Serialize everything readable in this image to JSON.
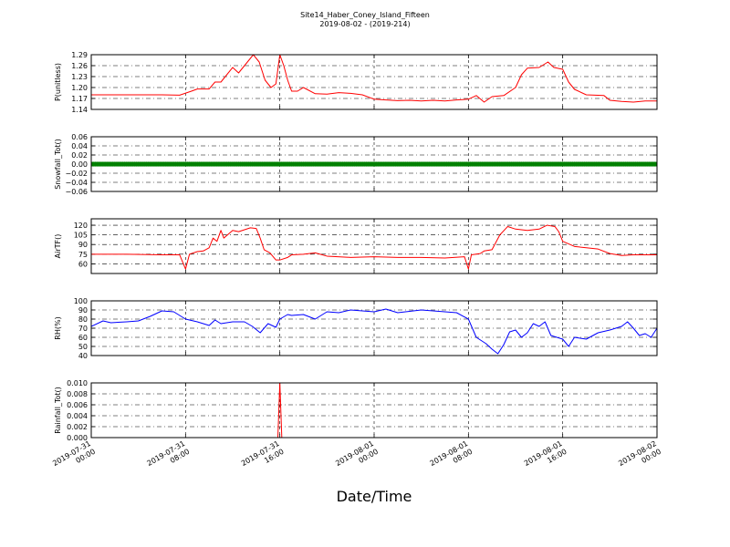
{
  "figure": {
    "title_line1": "Site14_Haber_Coney_Island_Fifteen",
    "title_line2": "2019-08-02 - (2019-214)",
    "xlabel": "Date/Time"
  },
  "x_axis": {
    "tick_times": [
      "2019-07-31T00:00",
      "2019-07-31T08:00",
      "2019-07-31T16:00",
      "2019-08-01T00:00",
      "2019-08-01T08:00",
      "2019-08-01T16:00",
      "2019-08-02T00:00"
    ],
    "tick_labels": [
      [
        "2019-07-31",
        "00:00"
      ],
      [
        "2019-07-31",
        "08:00"
      ],
      [
        "2019-07-31",
        "16:00"
      ],
      [
        "2019-08-01",
        "00:00"
      ],
      [
        "2019-08-01",
        "08:00"
      ],
      [
        "2019-08-01",
        "16:00"
      ],
      [
        "2019-08-02",
        "00:00"
      ]
    ]
  },
  "colors": {
    "pressure": "#ff0000",
    "snowfall": "#008000",
    "airtemp": "#ff0000",
    "rh": "#0000ff",
    "rainfall": "#ff0000"
  },
  "chart_data": [
    {
      "type": "line",
      "ylabel": "P(unitless)",
      "ylim": [
        1.14,
        1.29
      ],
      "yticks": [
        1.14,
        1.17,
        1.2,
        1.23,
        1.26,
        1.29
      ],
      "ytick_labels": [
        "1.14",
        "1.17",
        "1.20",
        "1.23",
        "1.26",
        "1.29"
      ],
      "grid": true,
      "series": [
        {
          "points": [
            [
              "2019-07-31T00:00",
              1.18
            ],
            [
              "2019-07-31T02:00",
              1.18
            ],
            [
              "2019-07-31T04:00",
              1.18
            ],
            [
              "2019-07-31T06:00",
              1.18
            ],
            [
              "2019-07-31T07:30",
              1.179
            ],
            [
              "2019-07-31T08:30",
              1.19
            ],
            [
              "2019-07-31T09:00",
              1.196
            ],
            [
              "2019-07-31T10:00",
              1.196
            ],
            [
              "2019-07-31T10:30",
              1.215
            ],
            [
              "2019-07-31T11:00",
              1.215
            ],
            [
              "2019-07-31T12:00",
              1.255
            ],
            [
              "2019-07-31T12:30",
              1.24
            ],
            [
              "2019-07-31T13:00",
              1.26
            ],
            [
              "2019-07-31T13:45",
              1.29
            ],
            [
              "2019-07-31T14:15",
              1.27
            ],
            [
              "2019-07-31T14:45",
              1.22
            ],
            [
              "2019-07-31T15:15",
              1.2
            ],
            [
              "2019-07-31T15:40",
              1.21
            ],
            [
              "2019-07-31T16:00",
              1.29
            ],
            [
              "2019-07-31T16:20",
              1.26
            ],
            [
              "2019-07-31T16:40",
              1.22
            ],
            [
              "2019-07-31T17:00",
              1.19
            ],
            [
              "2019-07-31T17:30",
              1.19
            ],
            [
              "2019-07-31T18:00",
              1.2
            ],
            [
              "2019-07-31T19:00",
              1.183
            ],
            [
              "2019-07-31T20:00",
              1.182
            ],
            [
              "2019-07-31T21:00",
              1.186
            ],
            [
              "2019-07-31T22:00",
              1.184
            ],
            [
              "2019-07-31T23:00",
              1.18
            ],
            [
              "2019-08-01T00:00",
              1.168
            ],
            [
              "2019-08-01T01:00",
              1.166
            ],
            [
              "2019-08-01T02:00",
              1.164
            ],
            [
              "2019-08-01T03:00",
              1.165
            ],
            [
              "2019-08-01T04:00",
              1.163
            ],
            [
              "2019-08-01T05:00",
              1.165
            ],
            [
              "2019-08-01T06:00",
              1.163
            ],
            [
              "2019-08-01T07:00",
              1.166
            ],
            [
              "2019-08-01T08:00",
              1.168
            ],
            [
              "2019-08-01T08:40",
              1.178
            ],
            [
              "2019-08-01T09:20",
              1.16
            ],
            [
              "2019-08-01T10:00",
              1.175
            ],
            [
              "2019-08-01T11:00",
              1.178
            ],
            [
              "2019-08-01T12:00",
              1.2
            ],
            [
              "2019-08-01T12:30",
              1.235
            ],
            [
              "2019-08-01T13:00",
              1.253
            ],
            [
              "2019-08-01T14:00",
              1.255
            ],
            [
              "2019-08-01T14:45",
              1.27
            ],
            [
              "2019-08-01T15:15",
              1.255
            ],
            [
              "2019-08-01T16:00",
              1.25
            ],
            [
              "2019-08-01T16:30",
              1.215
            ],
            [
              "2019-08-01T17:00",
              1.195
            ],
            [
              "2019-08-01T18:00",
              1.18
            ],
            [
              "2019-08-01T19:30",
              1.178
            ],
            [
              "2019-08-01T20:00",
              1.165
            ],
            [
              "2019-08-01T21:00",
              1.162
            ],
            [
              "2019-08-01T22:00",
              1.16
            ],
            [
              "2019-08-01T23:00",
              1.163
            ],
            [
              "2019-08-02T00:00",
              1.163
            ]
          ]
        }
      ]
    },
    {
      "type": "scatter",
      "ylabel": "Snowfall_Tot()",
      "ylim": [
        -0.06,
        0.06
      ],
      "yticks": [
        -0.06,
        -0.04,
        -0.02,
        0.0,
        0.02,
        0.04,
        0.06
      ],
      "ytick_labels": [
        "−0.06",
        "−0.04",
        "−0.02",
        "0.00",
        "0.02",
        "0.04",
        "0.06"
      ],
      "grid": true,
      "series": [
        {
          "constant": 0.0,
          "points_per_hour": 6
        }
      ]
    },
    {
      "type": "line",
      "ylabel": "AirTF()",
      "ylim": [
        45,
        130
      ],
      "yticks": [
        60,
        75,
        90,
        105,
        120
      ],
      "ytick_labels": [
        "60",
        "75",
        "90",
        "105",
        "120"
      ],
      "grid": true,
      "series": [
        {
          "points": [
            [
              "2019-07-31T00:00",
              75
            ],
            [
              "2019-07-31T03:00",
              75
            ],
            [
              "2019-07-31T06:00",
              74
            ],
            [
              "2019-07-31T07:30",
              74
            ],
            [
              "2019-07-31T08:00",
              52
            ],
            [
              "2019-07-31T08:20",
              75
            ],
            [
              "2019-07-31T09:00",
              79
            ],
            [
              "2019-07-31T09:30",
              80
            ],
            [
              "2019-07-31T10:00",
              85
            ],
            [
              "2019-07-31T10:20",
              100
            ],
            [
              "2019-07-31T10:40",
              95
            ],
            [
              "2019-07-31T11:00",
              112
            ],
            [
              "2019-07-31T11:15",
              100
            ],
            [
              "2019-07-31T12:00",
              112
            ],
            [
              "2019-07-31T12:30",
              110
            ],
            [
              "2019-07-31T13:00",
              113
            ],
            [
              "2019-07-31T13:30",
              116
            ],
            [
              "2019-07-31T14:00",
              115
            ],
            [
              "2019-07-31T14:20",
              100
            ],
            [
              "2019-07-31T14:40",
              82
            ],
            [
              "2019-07-31T15:10",
              77
            ],
            [
              "2019-07-31T15:40",
              66
            ],
            [
              "2019-07-31T16:00",
              66
            ],
            [
              "2019-07-31T16:40",
              70
            ],
            [
              "2019-07-31T17:00",
              74
            ],
            [
              "2019-07-31T18:00",
              75
            ],
            [
              "2019-07-31T19:00",
              77
            ],
            [
              "2019-07-31T20:00",
              72
            ],
            [
              "2019-07-31T22:00",
              70
            ],
            [
              "2019-08-01T00:00",
              71
            ],
            [
              "2019-08-01T02:00",
              70
            ],
            [
              "2019-08-01T04:00",
              70
            ],
            [
              "2019-08-01T06:00",
              69
            ],
            [
              "2019-08-01T07:40",
              71
            ],
            [
              "2019-08-01T08:00",
              52
            ],
            [
              "2019-08-01T08:15",
              74
            ],
            [
              "2019-08-01T09:00",
              76
            ],
            [
              "2019-08-01T09:20",
              80
            ],
            [
              "2019-08-01T10:00",
              82
            ],
            [
              "2019-08-01T10:40",
              105
            ],
            [
              "2019-08-01T11:20",
              118
            ],
            [
              "2019-08-01T12:00",
              114
            ],
            [
              "2019-08-01T13:00",
              112
            ],
            [
              "2019-08-01T14:00",
              114
            ],
            [
              "2019-08-01T14:40",
              120
            ],
            [
              "2019-08-01T15:20",
              118
            ],
            [
              "2019-08-01T15:40",
              110
            ],
            [
              "2019-08-01T16:00",
              95
            ],
            [
              "2019-08-01T17:00",
              87
            ],
            [
              "2019-08-01T18:00",
              85
            ],
            [
              "2019-08-01T19:00",
              83
            ],
            [
              "2019-08-01T20:00",
              76
            ],
            [
              "2019-08-01T21:00",
              73
            ],
            [
              "2019-08-01T22:00",
              74
            ],
            [
              "2019-08-02T00:00",
              74
            ]
          ]
        }
      ]
    },
    {
      "type": "line",
      "ylabel": "RH(%)",
      "ylim": [
        40,
        100
      ],
      "yticks": [
        40,
        50,
        60,
        70,
        80,
        90,
        100
      ],
      "ytick_labels": [
        "40",
        "50",
        "60",
        "70",
        "80",
        "90",
        "100"
      ],
      "grid": true,
      "series": [
        {
          "points": [
            [
              "2019-07-31T00:00",
              72
            ],
            [
              "2019-07-31T01:00",
              78
            ],
            [
              "2019-07-31T01:40",
              76
            ],
            [
              "2019-07-31T03:00",
              77
            ],
            [
              "2019-07-31T04:00",
              78
            ],
            [
              "2019-07-31T05:00",
              83
            ],
            [
              "2019-07-31T06:00",
              89
            ],
            [
              "2019-07-31T07:00",
              88
            ],
            [
              "2019-07-31T08:00",
              80
            ],
            [
              "2019-07-31T09:00",
              77
            ],
            [
              "2019-07-31T10:00",
              73
            ],
            [
              "2019-07-31T10:30",
              79
            ],
            [
              "2019-07-31T11:00",
              75
            ],
            [
              "2019-07-31T12:00",
              77
            ],
            [
              "2019-07-31T13:00",
              77
            ],
            [
              "2019-07-31T13:40",
              72
            ],
            [
              "2019-07-31T14:20",
              65
            ],
            [
              "2019-07-31T15:00",
              75
            ],
            [
              "2019-07-31T15:40",
              71
            ],
            [
              "2019-07-31T16:00",
              80
            ],
            [
              "2019-07-31T16:40",
              85
            ],
            [
              "2019-07-31T17:00",
              84
            ],
            [
              "2019-07-31T18:00",
              85
            ],
            [
              "2019-07-31T19:00",
              80
            ],
            [
              "2019-07-31T20:00",
              88
            ],
            [
              "2019-07-31T21:00",
              87
            ],
            [
              "2019-07-31T22:00",
              90
            ],
            [
              "2019-08-01T00:00",
              88
            ],
            [
              "2019-08-01T01:00",
              91
            ],
            [
              "2019-08-01T02:00",
              87
            ],
            [
              "2019-08-01T04:00",
              90
            ],
            [
              "2019-08-01T05:00",
              89
            ],
            [
              "2019-08-01T06:00",
              88
            ],
            [
              "2019-08-01T07:00",
              87
            ],
            [
              "2019-08-01T08:00",
              80
            ],
            [
              "2019-08-01T08:40",
              60
            ],
            [
              "2019-08-01T09:30",
              53
            ],
            [
              "2019-08-01T10:00",
              47
            ],
            [
              "2019-08-01T10:30",
              42
            ],
            [
              "2019-08-01T11:00",
              52
            ],
            [
              "2019-08-01T11:30",
              66
            ],
            [
              "2019-08-01T12:00",
              68
            ],
            [
              "2019-08-01T12:30",
              60
            ],
            [
              "2019-08-01T13:00",
              65
            ],
            [
              "2019-08-01T13:30",
              75
            ],
            [
              "2019-08-01T14:00",
              72
            ],
            [
              "2019-08-01T14:30",
              77
            ],
            [
              "2019-08-01T15:00",
              62
            ],
            [
              "2019-08-01T15:30",
              60
            ],
            [
              "2019-08-01T16:00",
              58
            ],
            [
              "2019-08-01T16:30",
              50
            ],
            [
              "2019-08-01T17:00",
              60
            ],
            [
              "2019-08-01T18:00",
              58
            ],
            [
              "2019-08-01T19:00",
              65
            ],
            [
              "2019-08-01T20:00",
              68
            ],
            [
              "2019-08-01T21:00",
              72
            ],
            [
              "2019-08-01T21:30",
              77
            ],
            [
              "2019-08-01T22:00",
              70
            ],
            [
              "2019-08-01T22:30",
              62
            ],
            [
              "2019-08-01T23:00",
              64
            ],
            [
              "2019-08-01T23:30",
              60
            ],
            [
              "2019-08-02T00:00",
              70
            ]
          ]
        }
      ]
    },
    {
      "type": "line",
      "ylabel": "Rainfall_Tot()",
      "ylim": [
        0.0,
        0.01
      ],
      "yticks": [
        0.0,
        0.002,
        0.004,
        0.006,
        0.008,
        0.01
      ],
      "ytick_labels": [
        "0.000",
        "0.002",
        "0.004",
        "0.006",
        "0.008",
        "0.010"
      ],
      "grid": true,
      "series": [
        {
          "points": [
            [
              "2019-07-31T00:00",
              0.0
            ],
            [
              "2019-07-31T15:50",
              0.0
            ],
            [
              "2019-07-31T16:00",
              0.01
            ],
            [
              "2019-07-31T16:10",
              0.0
            ],
            [
              "2019-08-02T00:00",
              0.0
            ]
          ]
        }
      ]
    }
  ]
}
